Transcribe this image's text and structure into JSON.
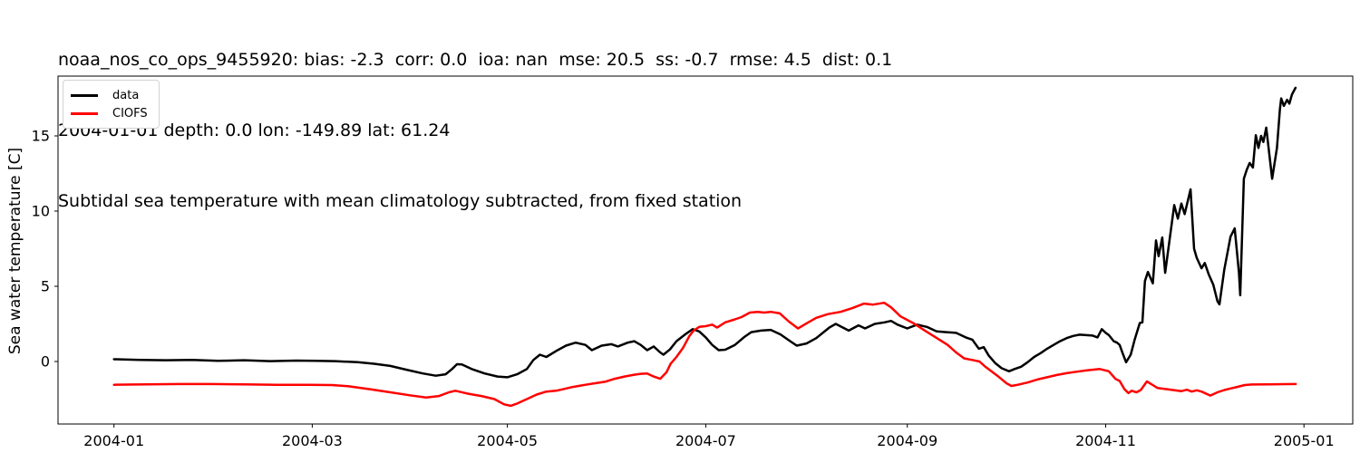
{
  "legend": {
    "items": [
      {
        "label": "data",
        "color": "#000000"
      },
      {
        "label": "CIOFS",
        "color": "#ff0000"
      }
    ]
  },
  "chart_data": {
    "type": "line",
    "title_lines": [
      "noaa_nos_co_ops_9455920: bias: -2.3  corr: 0.0  ioa: nan  mse: 20.5  ss: -0.7  rmse: 4.5  dist: 0.1",
      "2004-01-01 depth: 0.0 lon: -149.89 lat: 61.24",
      "Subtidal sea temperature with mean climatology subtracted, from fixed station"
    ],
    "station": "noaa_nos_co_ops_9455920",
    "stats": {
      "bias": -2.3,
      "corr": 0.0,
      "ioa": "nan",
      "mse": 20.5,
      "ss": -0.7,
      "rmse": 4.5,
      "dist": 0.1
    },
    "start_date": "2004-01-01",
    "depth": 0.0,
    "lon": -149.89,
    "lat": 61.24,
    "ylabel": "Sea water temperature [C]",
    "x_unit": "days since 2004-01-01",
    "xlim": [
      -17.2,
      381
    ],
    "ylim": [
      -4.16,
      18.98
    ],
    "grid": false,
    "legend_position": "upper left",
    "x_ticks": [
      {
        "day": 0,
        "label": "2004-01"
      },
      {
        "day": 61,
        "label": "2004-03"
      },
      {
        "day": 121,
        "label": "2004-05"
      },
      {
        "day": 182,
        "label": "2004-07"
      },
      {
        "day": 244,
        "label": "2004-09"
      },
      {
        "day": 305,
        "label": "2004-11"
      },
      {
        "day": 366,
        "label": "2005-01"
      }
    ],
    "y_ticks": [
      0,
      5,
      10,
      15
    ],
    "series": [
      {
        "name": "data",
        "color": "#000000",
        "points": [
          [
            0,
            0.15
          ],
          [
            8,
            0.1
          ],
          [
            16,
            0.08
          ],
          [
            24,
            0.1
          ],
          [
            32,
            0.04
          ],
          [
            40,
            0.08
          ],
          [
            48,
            0.02
          ],
          [
            56,
            0.06
          ],
          [
            62,
            0.04
          ],
          [
            68,
            0.02
          ],
          [
            75,
            -0.05
          ],
          [
            80,
            -0.15
          ],
          [
            85,
            -0.3
          ],
          [
            90,
            -0.55
          ],
          [
            95,
            -0.8
          ],
          [
            99,
            -0.95
          ],
          [
            102,
            -0.85
          ],
          [
            104,
            -0.5
          ],
          [
            105.5,
            -0.18
          ],
          [
            107,
            -0.2
          ],
          [
            110,
            -0.5
          ],
          [
            114,
            -0.8
          ],
          [
            118,
            -1.0
          ],
          [
            121,
            -1.05
          ],
          [
            124,
            -0.85
          ],
          [
            127,
            -0.5
          ],
          [
            129,
            0.1
          ],
          [
            131,
            0.45
          ],
          [
            133,
            0.3
          ],
          [
            136,
            0.7
          ],
          [
            139,
            1.05
          ],
          [
            142,
            1.25
          ],
          [
            145,
            1.1
          ],
          [
            147,
            0.75
          ],
          [
            150,
            1.05
          ],
          [
            153,
            1.15
          ],
          [
            155,
            1.0
          ],
          [
            158,
            1.25
          ],
          [
            160,
            1.35
          ],
          [
            162,
            1.1
          ],
          [
            164,
            0.75
          ],
          [
            166,
            1.0
          ],
          [
            168,
            0.6
          ],
          [
            169,
            0.45
          ],
          [
            171,
            0.8
          ],
          [
            173,
            1.35
          ],
          [
            176,
            1.85
          ],
          [
            178,
            2.15
          ],
          [
            180,
            2.0
          ],
          [
            182,
            1.6
          ],
          [
            184,
            1.1
          ],
          [
            186,
            0.75
          ],
          [
            188,
            0.78
          ],
          [
            191,
            1.1
          ],
          [
            194,
            1.65
          ],
          [
            196,
            1.95
          ],
          [
            199,
            2.05
          ],
          [
            202,
            2.1
          ],
          [
            205,
            1.8
          ],
          [
            208,
            1.35
          ],
          [
            210,
            1.05
          ],
          [
            213,
            1.2
          ],
          [
            216,
            1.55
          ],
          [
            220,
            2.25
          ],
          [
            222,
            2.5
          ],
          [
            226,
            2.05
          ],
          [
            229,
            2.4
          ],
          [
            231,
            2.2
          ],
          [
            234,
            2.5
          ],
          [
            237,
            2.6
          ],
          [
            239,
            2.7
          ],
          [
            241,
            2.45
          ],
          [
            244,
            2.2
          ],
          [
            247,
            2.45
          ],
          [
            250,
            2.3
          ],
          [
            253,
            2.0
          ],
          [
            256,
            1.95
          ],
          [
            259,
            1.9
          ],
          [
            262,
            1.6
          ],
          [
            264,
            1.45
          ],
          [
            266,
            0.85
          ],
          [
            267.5,
            0.95
          ],
          [
            269,
            0.4
          ],
          [
            271,
            -0.1
          ],
          [
            273,
            -0.45
          ],
          [
            275.3,
            -0.65
          ],
          [
            277,
            -0.5
          ],
          [
            279,
            -0.35
          ],
          [
            281,
            -0.05
          ],
          [
            283,
            0.3
          ],
          [
            285,
            0.55
          ],
          [
            287,
            0.85
          ],
          [
            289,
            1.1
          ],
          [
            291,
            1.35
          ],
          [
            293,
            1.55
          ],
          [
            295,
            1.7
          ],
          [
            297,
            1.78
          ],
          [
            299,
            1.75
          ],
          [
            301,
            1.72
          ],
          [
            302.5,
            1.6
          ],
          [
            303.8,
            2.15
          ],
          [
            305,
            1.9
          ],
          [
            306,
            1.75
          ],
          [
            307.5,
            1.35
          ],
          [
            308.5,
            1.25
          ],
          [
            309.3,
            1.1
          ],
          [
            310.3,
            0.5
          ],
          [
            311.3,
            -0.05
          ],
          [
            312.7,
            0.45
          ],
          [
            314,
            1.5
          ],
          [
            315.5,
            2.55
          ],
          [
            316.3,
            2.6
          ],
          [
            317.1,
            5.35
          ],
          [
            318,
            5.95
          ],
          [
            319.5,
            5.2
          ],
          [
            320.5,
            8.05
          ],
          [
            321.3,
            7.0
          ],
          [
            322.4,
            8.25
          ],
          [
            323.3,
            5.9
          ],
          [
            326.1,
            10.4
          ],
          [
            327.2,
            9.5
          ],
          [
            328.3,
            10.5
          ],
          [
            329.3,
            9.8
          ],
          [
            331.1,
            11.45
          ],
          [
            332.2,
            7.5
          ],
          [
            333,
            6.9
          ],
          [
            334.5,
            6.2
          ],
          [
            335.5,
            6.55
          ],
          [
            336.7,
            5.8
          ],
          [
            338.1,
            5.1
          ],
          [
            339.4,
            4.0
          ],
          [
            340,
            3.8
          ],
          [
            341.5,
            6.1
          ],
          [
            343.4,
            8.3
          ],
          [
            344.7,
            8.85
          ],
          [
            346,
            5.9
          ],
          [
            346.4,
            4.4
          ],
          [
            347.5,
            12.15
          ],
          [
            348.4,
            12.75
          ],
          [
            349.3,
            13.2
          ],
          [
            350.3,
            12.9
          ],
          [
            351.2,
            15.05
          ],
          [
            352,
            14.2
          ],
          [
            352.8,
            15.0
          ],
          [
            353.5,
            14.6
          ],
          [
            354.4,
            15.55
          ],
          [
            356.2,
            12.15
          ],
          [
            357.7,
            14.2
          ],
          [
            358.6,
            16.8
          ],
          [
            359,
            17.5
          ],
          [
            359.8,
            17.0
          ],
          [
            360.8,
            17.4
          ],
          [
            361.5,
            17.15
          ],
          [
            362.3,
            17.75
          ],
          [
            363.4,
            18.2
          ]
        ]
      },
      {
        "name": "CIOFS",
        "color": "#ff0000",
        "points": [
          [
            0,
            -1.55
          ],
          [
            10,
            -1.52
          ],
          [
            20,
            -1.5
          ],
          [
            30,
            -1.5
          ],
          [
            40,
            -1.52
          ],
          [
            50,
            -1.55
          ],
          [
            60,
            -1.55
          ],
          [
            67,
            -1.57
          ],
          [
            72,
            -1.65
          ],
          [
            79,
            -1.85
          ],
          [
            85,
            -2.05
          ],
          [
            91,
            -2.25
          ],
          [
            96,
            -2.4
          ],
          [
            100,
            -2.3
          ],
          [
            103,
            -2.05
          ],
          [
            105,
            -1.95
          ],
          [
            109,
            -2.15
          ],
          [
            113,
            -2.3
          ],
          [
            117,
            -2.5
          ],
          [
            120,
            -2.85
          ],
          [
            122,
            -2.95
          ],
          [
            124,
            -2.8
          ],
          [
            127,
            -2.5
          ],
          [
            130,
            -2.2
          ],
          [
            133,
            -2.0
          ],
          [
            136,
            -1.95
          ],
          [
            138,
            -1.85
          ],
          [
            141,
            -1.7
          ],
          [
            145,
            -1.55
          ],
          [
            148,
            -1.45
          ],
          [
            151,
            -1.35
          ],
          [
            154,
            -1.15
          ],
          [
            157,
            -1.0
          ],
          [
            160,
            -0.88
          ],
          [
            162,
            -0.82
          ],
          [
            164,
            -0.8
          ],
          [
            166,
            -1.0
          ],
          [
            168,
            -1.15
          ],
          [
            170,
            -0.7
          ],
          [
            171.2,
            -0.16
          ],
          [
            173,
            0.3
          ],
          [
            175,
            0.9
          ],
          [
            177,
            1.7
          ],
          [
            178.3,
            2.05
          ],
          [
            180,
            2.3
          ],
          [
            182,
            2.35
          ],
          [
            184,
            2.45
          ],
          [
            185.5,
            2.25
          ],
          [
            188,
            2.6
          ],
          [
            191,
            2.8
          ],
          [
            193,
            2.95
          ],
          [
            195.6,
            3.25
          ],
          [
            198,
            3.3
          ],
          [
            200,
            3.25
          ],
          [
            202,
            3.3
          ],
          [
            204.8,
            3.2
          ],
          [
            207.6,
            2.65
          ],
          [
            210.4,
            2.2
          ],
          [
            213.2,
            2.55
          ],
          [
            216,
            2.9
          ],
          [
            219.6,
            3.15
          ],
          [
            223.5,
            3.3
          ],
          [
            227.1,
            3.55
          ],
          [
            230.7,
            3.85
          ],
          [
            233.5,
            3.78
          ],
          [
            236.9,
            3.9
          ],
          [
            239,
            3.6
          ],
          [
            241.9,
            3.0
          ],
          [
            245.8,
            2.55
          ],
          [
            249.4,
            2.05
          ],
          [
            253.1,
            1.55
          ],
          [
            256.4,
            1.1
          ],
          [
            259,
            0.6
          ],
          [
            261.5,
            0.2
          ],
          [
            264,
            0.1
          ],
          [
            266.2,
            0.0
          ],
          [
            268,
            -0.35
          ],
          [
            271.7,
            -0.95
          ],
          [
            274.5,
            -1.45
          ],
          [
            276,
            -1.63
          ],
          [
            278,
            -1.55
          ],
          [
            281,
            -1.4
          ],
          [
            284,
            -1.2
          ],
          [
            287,
            -1.05
          ],
          [
            290,
            -0.9
          ],
          [
            293,
            -0.78
          ],
          [
            296,
            -0.68
          ],
          [
            299,
            -0.6
          ],
          [
            303.2,
            -0.5
          ],
          [
            306,
            -0.65
          ],
          [
            308,
            -1.15
          ],
          [
            309.3,
            -1.3
          ],
          [
            310.8,
            -1.85
          ],
          [
            312,
            -2.1
          ],
          [
            313,
            -1.95
          ],
          [
            314.5,
            -2.05
          ],
          [
            315.8,
            -1.9
          ],
          [
            317.7,
            -1.33
          ],
          [
            319,
            -1.5
          ],
          [
            321,
            -1.77
          ],
          [
            324.7,
            -1.87
          ],
          [
            328.3,
            -1.97
          ],
          [
            330,
            -1.88
          ],
          [
            331.5,
            -2.0
          ],
          [
            333,
            -1.92
          ],
          [
            334.5,
            -2.0
          ],
          [
            337.2,
            -2.27
          ],
          [
            339.4,
            -2.05
          ],
          [
            341.5,
            -1.9
          ],
          [
            343.4,
            -1.8
          ],
          [
            345,
            -1.72
          ],
          [
            347.8,
            -1.57
          ],
          [
            350,
            -1.53
          ],
          [
            355,
            -1.52
          ],
          [
            360,
            -1.51
          ],
          [
            363.5,
            -1.5
          ]
        ]
      }
    ]
  }
}
